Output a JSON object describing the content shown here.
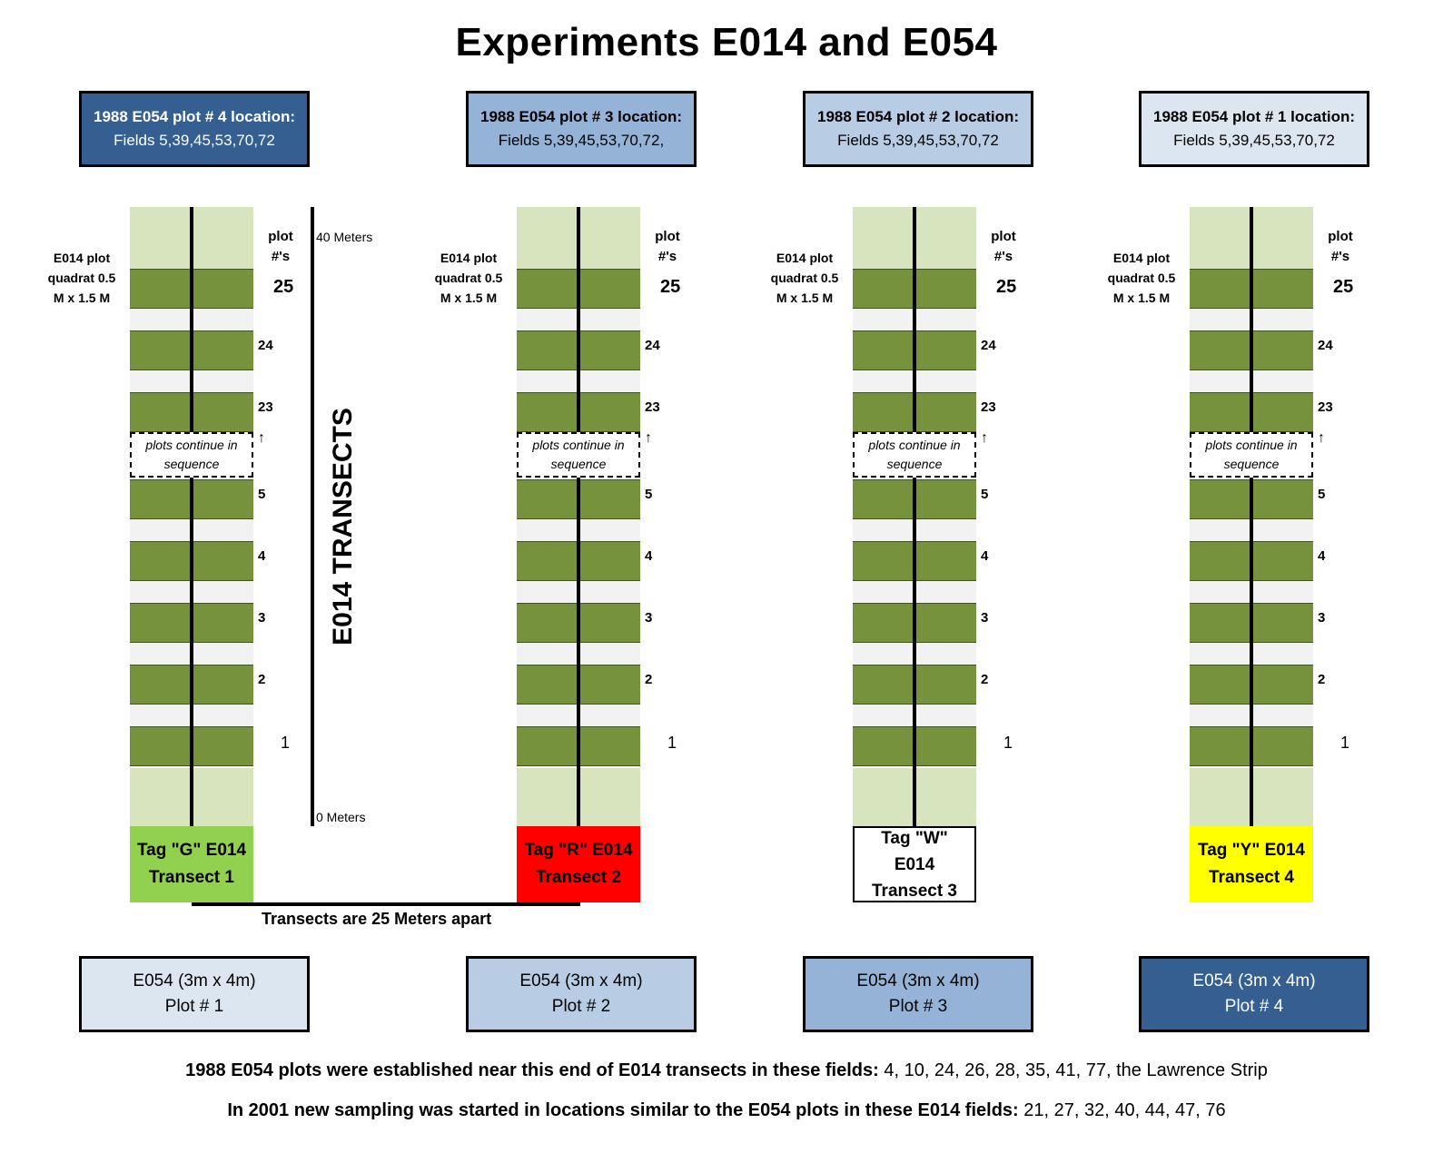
{
  "title": "Experiments E014 and E054",
  "top_boxes": [
    {
      "line1": "1988 E054 plot # 4 location:",
      "line2": "Fields 5,39,45,53,70,72"
    },
    {
      "line1": "1988 E054 plot # 3 location:",
      "line2": "Fields 5,39,45,53,70,72,"
    },
    {
      "line1": "1988 E054 plot # 2 location:",
      "line2": "Fields 5,39,45,53,70,72"
    },
    {
      "line1": "1988 E054 plot # 1 location:",
      "line2": "Fields 5,39,45,53,70,72"
    }
  ],
  "quadrat_label": {
    "l1": "E014 plot",
    "l2": "quadrat 0.5",
    "l3": "M x 1.5 M"
  },
  "plot_header": {
    "l1": "plot",
    "l2": "#'s"
  },
  "plot_numbers": [
    "25",
    "24",
    "23",
    "5",
    "4",
    "3",
    "2",
    "1"
  ],
  "continue_text": "plots continue in sequence",
  "arrow": "↑",
  "scale": {
    "top": "40 Meters",
    "bottom": "0 Meters",
    "label": "E014 TRANSECTS"
  },
  "tags": [
    {
      "l1": "Tag \"G\" E014",
      "l2": "Transect 1",
      "color": "#92d050",
      "text_color": "#000000"
    },
    {
      "l1": "Tag \"R\" E014",
      "l2": "Transect 2",
      "color": "#ff0000",
      "text_color": "#000000"
    },
    {
      "l1": "Tag \"W\"",
      "l2": "E014",
      "l3": "Transect 3",
      "color": "#ffffff",
      "text_color": "#000000"
    },
    {
      "l1": "Tag \"Y\" E014",
      "l2": "Transect 4",
      "color": "#ffff00",
      "text_color": "#000000"
    }
  ],
  "spacing_label": "Transects are 25 Meters apart",
  "bottom_boxes": [
    {
      "line1": "E054  (3m x 4m)",
      "line2": "Plot # 1"
    },
    {
      "line1": "E054  (3m x 4m)",
      "line2": "Plot # 2"
    },
    {
      "line1": "E054  (3m x 4m)",
      "line2": "Plot # 3"
    },
    {
      "line1": "E054  (3m x 4m)",
      "line2": "Plot # 4"
    }
  ],
  "footer": {
    "line1_bold": "1988 E054 plots were established near this end of E014 transects in these fields:",
    "line1_rest": " 4, 10, 24, 26, 28, 35, 41, 77, the Lawrence Strip",
    "line2_bold": "In 2001 new sampling was started in locations similar to the E054 plots in these E014 fields:",
    "line2_rest": "  21, 27, 32, 40, 44, 47, 76"
  }
}
